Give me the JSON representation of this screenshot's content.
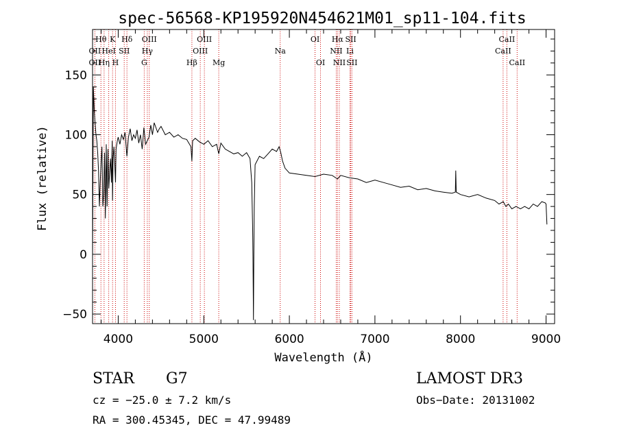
{
  "chart_data": {
    "type": "line",
    "title": "spec-56568-KP195920N454621M01_sp11-104.fits",
    "xlabel": "Wavelength (Å)",
    "ylabel": "Flux (relative)",
    "xlim": [
      3700,
      9100
    ],
    "ylim": [
      -58,
      188
    ],
    "xticks": [
      4000,
      5000,
      6000,
      7000,
      8000,
      9000
    ],
    "yticks": [
      -50,
      0,
      50,
      100,
      150
    ],
    "series": [
      {
        "name": "spectrum",
        "x": [
          3700,
          3710,
          3720,
          3730,
          3740,
          3750,
          3760,
          3770,
          3780,
          3790,
          3800,
          3810,
          3820,
          3830,
          3840,
          3850,
          3860,
          3870,
          3880,
          3890,
          3900,
          3910,
          3920,
          3930,
          3933,
          3940,
          3950,
          3960,
          3968,
          3975,
          3990,
          4000,
          4020,
          4040,
          4060,
          4080,
          4101,
          4120,
          4140,
          4160,
          4180,
          4200,
          4220,
          4240,
          4260,
          4280,
          4300,
          4320,
          4340,
          4360,
          4380,
          4400,
          4420,
          4440,
          4460,
          4480,
          4500,
          4550,
          4600,
          4650,
          4700,
          4750,
          4800,
          4850,
          4861,
          4870,
          4900,
          4950,
          5000,
          5050,
          5100,
          5150,
          5175,
          5200,
          5250,
          5300,
          5350,
          5400,
          5450,
          5500,
          5540,
          5560,
          5570,
          5575,
          5580,
          5585,
          5590,
          5600,
          5650,
          5700,
          5750,
          5800,
          5850,
          5880,
          5900,
          5920,
          5950,
          6000,
          6100,
          6200,
          6300,
          6400,
          6500,
          6563,
          6600,
          6700,
          6800,
          6900,
          7000,
          7100,
          7200,
          7300,
          7400,
          7500,
          7600,
          7700,
          7800,
          7900,
          7940,
          7945,
          7950,
          8000,
          8100,
          8200,
          8300,
          8400,
          8450,
          8500,
          8530,
          8560,
          8600,
          8650,
          8700,
          8750,
          8800,
          8850,
          8900,
          8950,
          8990,
          9000,
          9010
        ],
        "values": [
          -5,
          140,
          120,
          110,
          100,
          95,
          85,
          70,
          40,
          60,
          78,
          90,
          40,
          50,
          85,
          30,
          92,
          40,
          88,
          55,
          70,
          80,
          60,
          95,
          45,
          80,
          90,
          75,
          60,
          88,
          95,
          98,
          92,
          100,
          96,
          102,
          82,
          98,
          105,
          95,
          100,
          97,
          104,
          93,
          100,
          88,
          106,
          92,
          95,
          98,
          108,
          100,
          110,
          106,
          102,
          105,
          107,
          100,
          102,
          98,
          100,
          97,
          96,
          90,
          78,
          95,
          97,
          94,
          92,
          95,
          90,
          92,
          84,
          93,
          88,
          86,
          84,
          85,
          82,
          85,
          80,
          60,
          25,
          -2,
          -55,
          0,
          40,
          75,
          82,
          80,
          84,
          88,
          86,
          90,
          85,
          78,
          72,
          68,
          67,
          66,
          65,
          67,
          66,
          63,
          66,
          64,
          63,
          60,
          62,
          60,
          58,
          56,
          57,
          54,
          55,
          53,
          52,
          51,
          52,
          70,
          52,
          50,
          48,
          50,
          47,
          45,
          42,
          44,
          40,
          42,
          38,
          40,
          38,
          40,
          38,
          42,
          40,
          44,
          43,
          42,
          25
        ]
      }
    ],
    "lines": [
      {
        "label": "Hθ",
        "lambda": 3798,
        "row": 1
      },
      {
        "label": "OII",
        "lambda": 3727,
        "row": 2
      },
      {
        "label": "OII",
        "lambda": 3727,
        "row": 3
      },
      {
        "label": "Hη",
        "lambda": 3835,
        "row": 3
      },
      {
        "label": "K",
        "lambda": 3934,
        "row": 1
      },
      {
        "label": "HeI",
        "lambda": 3889,
        "row": 2
      },
      {
        "label": "SII",
        "lambda": 4070,
        "row": 2
      },
      {
        "label": "H",
        "lambda": 3968,
        "row": 3
      },
      {
        "label": "Hδ",
        "lambda": 4102,
        "row": 1
      },
      {
        "label": "OIII",
        "lambda": 4363,
        "row": 1
      },
      {
        "label": "Hγ",
        "lambda": 4340,
        "row": 2
      },
      {
        "label": "G",
        "lambda": 4304,
        "row": 3
      },
      {
        "label": "Hβ",
        "lambda": 4861,
        "row": 3
      },
      {
        "label": "OIII",
        "lambda": 5007,
        "row": 1
      },
      {
        "label": "OIII",
        "lambda": 4959,
        "row": 2
      },
      {
        "label": "Mg",
        "lambda": 5175,
        "row": 3
      },
      {
        "label": "Na",
        "lambda": 5893,
        "row": 2
      },
      {
        "label": "OI",
        "lambda": 6300,
        "row": 1
      },
      {
        "label": "OI",
        "lambda": 6364,
        "row": 3
      },
      {
        "label": "Hα",
        "lambda": 6563,
        "row": 1
      },
      {
        "label": "NII",
        "lambda": 6548,
        "row": 2
      },
      {
        "label": "NII",
        "lambda": 6584,
        "row": 3
      },
      {
        "label": "SII",
        "lambda": 6717,
        "row": 1
      },
      {
        "label": "Li",
        "lambda": 6708,
        "row": 2
      },
      {
        "label": "SII",
        "lambda": 6731,
        "row": 3
      },
      {
        "label": "CaII",
        "lambda": 8542,
        "row": 1
      },
      {
        "label": "CaII",
        "lambda": 8498,
        "row": 2
      },
      {
        "label": "CaII",
        "lambda": 8662,
        "row": 3
      }
    ]
  },
  "info": {
    "class": "STAR",
    "subclass": "G7",
    "survey": "LAMOST DR3",
    "cz": "cz = −25.0 ± 7.2 km/s",
    "obs_date": "Obs−Date: 20131002",
    "coords": "RA = 300.45345, DEC =  47.99489"
  },
  "colors": {
    "line_marker": "#cc0000",
    "spectrum": "#000000",
    "axes": "#000000"
  }
}
